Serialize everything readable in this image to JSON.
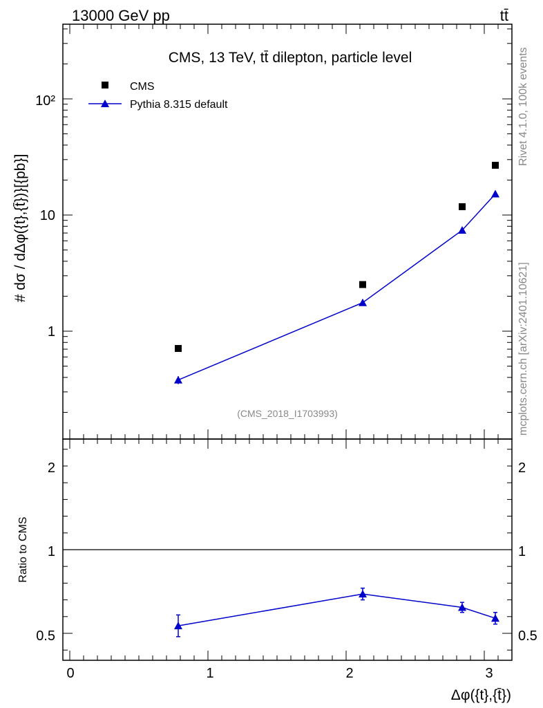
{
  "header": {
    "left": "13000 GeV pp",
    "right": "tt̄"
  },
  "side_labels": {
    "rivet": "Rivet 4.1.0,  100k events",
    "mcplots": "mcplots.cern.ch [arXiv:2401.10621]"
  },
  "analysis_id": "(CMS_2018_I1703993)",
  "chart_data": [
    {
      "type": "scatter",
      "title": "CMS, 13 TeV, tt̄ dilepton, particle level",
      "xlabel": "Δφ({t},{t̄})",
      "ylabel": "# dσ / dΔφ({t},{t̄})}[{pb}]",
      "yscale": "log",
      "xlim": [
        -0.05,
        3.2
      ],
      "ylim": [
        0.2,
        500
      ],
      "y_tick_labels": [
        "1",
        "10",
        "10²"
      ],
      "x": [
        0.785,
        2.12,
        2.84,
        3.08
      ],
      "series": [
        {
          "name": "CMS",
          "marker": "square",
          "color": "#000000",
          "values": [
            0.71,
            2.52,
            11.8,
            26.8
          ]
        },
        {
          "name": "Pythia 8.315 default",
          "marker": "triangle",
          "line": true,
          "color": "#0000cc",
          "values": [
            0.38,
            1.76,
            7.4,
            15.2
          ],
          "err_low": [
            0.03,
            0.07,
            0.25,
            0.45
          ],
          "err_high": [
            0.03,
            0.07,
            0.25,
            0.45
          ]
        }
      ],
      "legend_position": "top-left"
    },
    {
      "type": "line",
      "ylabel": "Ratio to CMS",
      "xlabel": "Δφ({t},{t̄})",
      "xlim": [
        -0.05,
        3.2
      ],
      "ylim": [
        0.35,
        2.3
      ],
      "x_tick_labels": [
        "0",
        "1",
        "2",
        "3"
      ],
      "y_tick_labels": [
        "0.5",
        "1",
        "2"
      ],
      "reference_line": 1,
      "x": [
        0.785,
        2.12,
        2.84,
        3.08
      ],
      "series": [
        {
          "name": "Pythia 8.315 default",
          "color": "#0000cc",
          "values": [
            0.545,
            0.735,
            0.655,
            0.59
          ],
          "err_low": [
            0.065,
            0.035,
            0.03,
            0.035
          ],
          "err_high": [
            0.065,
            0.035,
            0.03,
            0.035
          ]
        }
      ]
    }
  ]
}
